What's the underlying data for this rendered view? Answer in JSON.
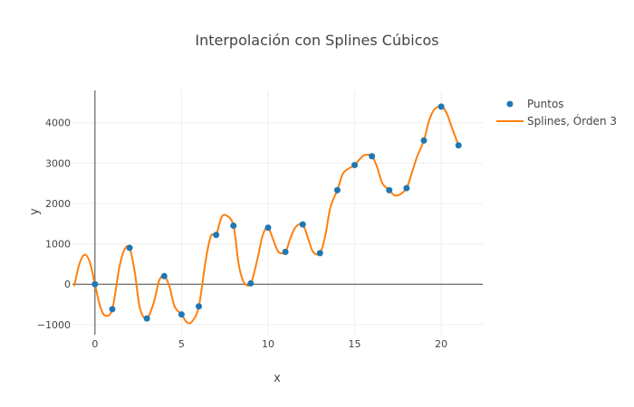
{
  "chart_data": {
    "type": "line",
    "title": "Interpolación con Splines Cúbicos",
    "xlabel": "x",
    "ylabel": "y",
    "xlim": [
      -1.3,
      22.4
    ],
    "ylim": [
      -1250,
      4800
    ],
    "x_ticks": [
      0,
      5,
      10,
      15,
      20
    ],
    "y_ticks": [
      -1000,
      0,
      1000,
      2000,
      3000,
      4000
    ],
    "y_tick_labels": [
      "−1000",
      "0",
      "1000",
      "2000",
      "3000",
      "4000"
    ],
    "grid": true,
    "legend_position": "top-right",
    "series": [
      {
        "name": "Puntos",
        "mode": "markers",
        "color": "#1f77b4",
        "x": [
          0,
          1,
          2,
          3,
          4,
          5,
          6,
          7,
          8,
          9,
          10,
          11,
          12,
          13,
          14,
          15,
          16,
          17,
          18,
          19,
          20,
          21
        ],
        "y": [
          0,
          -620,
          900,
          -850,
          200,
          -750,
          -550,
          1220,
          1450,
          20,
          1400,
          800,
          1480,
          770,
          2330,
          2950,
          3170,
          2330,
          2380,
          3560,
          4400,
          3440
        ]
      },
      {
        "name": "Splines, Órden 3",
        "mode": "lines",
        "color": "#ff7f0e",
        "x": [
          -1.2,
          -0.9,
          -0.6,
          -0.3,
          0,
          0.3,
          0.6,
          1.0,
          1.4,
          1.7,
          2.0,
          2.3,
          2.6,
          3.0,
          3.4,
          3.7,
          4.0,
          4.3,
          4.6,
          5.0,
          5.3,
          5.6,
          6.0,
          6.4,
          6.7,
          7.0,
          7.3,
          7.6,
          8.0,
          8.3,
          8.6,
          9.0,
          9.4,
          9.7,
          10.0,
          10.3,
          10.6,
          11.0,
          11.3,
          11.6,
          12.0,
          12.3,
          12.6,
          13.0,
          13.3,
          13.6,
          14.0,
          14.3,
          14.6,
          15.0,
          15.3,
          15.6,
          16.0,
          16.3,
          16.6,
          17.0,
          17.3,
          17.6,
          18.0,
          18.3,
          18.6,
          19.0,
          19.3,
          19.6,
          20.0,
          20.3,
          20.6,
          21.0
        ],
        "y": [
          -50,
          500,
          730,
          550,
          0,
          -550,
          -780,
          -620,
          400,
          850,
          900,
          300,
          -600,
          -850,
          -450,
          80,
          200,
          -50,
          -550,
          -750,
          -940,
          -930,
          -550,
          600,
          1200,
          1220,
          1650,
          1700,
          1450,
          500,
          50,
          20,
          650,
          1230,
          1400,
          1100,
          800,
          800,
          1150,
          1420,
          1480,
          1150,
          800,
          770,
          1200,
          1900,
          2330,
          2720,
          2850,
          2950,
          3100,
          3200,
          3170,
          2900,
          2500,
          2330,
          2200,
          2220,
          2380,
          2750,
          3150,
          3560,
          4050,
          4330,
          4400,
          4250,
          3900,
          3440
        ]
      }
    ]
  }
}
